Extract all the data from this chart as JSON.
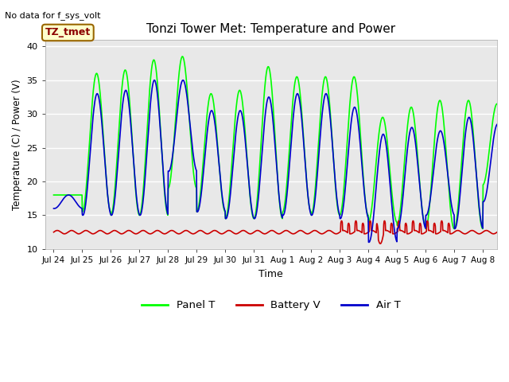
{
  "title": "Tonzi Tower Met: Temperature and Power",
  "no_data_text": "No data for f_sys_volt",
  "legend_label_text": "TZ_tmet",
  "xlabel": "Time",
  "ylabel": "Temperature (C) / Power (V)",
  "ylim": [
    10,
    41
  ],
  "yticks": [
    10,
    15,
    20,
    25,
    30,
    35,
    40
  ],
  "bg_color": "#e8e8e8",
  "fig_color": "#ffffff",
  "panel_color": "#00ff00",
  "battery_color": "#cc0000",
  "air_color": "#0000cc",
  "line_width": 1.2,
  "x_tick_labels": [
    "Jul 24",
    "Jul 25",
    "Jul 26",
    "Jul 27",
    "Jul 28",
    "Jul 29",
    "Jul 30",
    "Jul 31",
    "Aug 1",
    "Aug 2",
    "Aug 3",
    "Aug 4",
    "Aug 5",
    "Aug 6",
    "Aug 7",
    "Aug 8"
  ],
  "panel_peaks": [
    18.0,
    36.0,
    36.5,
    38.0,
    38.5,
    33.0,
    33.5,
    37.0,
    35.5,
    35.5,
    35.5,
    29.5,
    31.0,
    32.0,
    32.0,
    31.5
  ],
  "panel_troughs": [
    18.0,
    15.5,
    15.0,
    15.0,
    19.0,
    15.5,
    14.5,
    14.5,
    15.5,
    15.0,
    15.0,
    14.0,
    13.5,
    13.0,
    13.0,
    19.5
  ],
  "air_peaks": [
    18.0,
    33.0,
    33.5,
    35.0,
    35.0,
    30.5,
    30.5,
    32.5,
    33.0,
    33.0,
    31.0,
    27.0,
    28.0,
    27.5,
    29.5,
    28.5
  ],
  "air_troughs": [
    16.0,
    15.0,
    15.0,
    15.0,
    21.5,
    15.5,
    14.5,
    14.5,
    15.0,
    15.0,
    14.5,
    11.0,
    13.0,
    15.0,
    13.0,
    17.0
  ],
  "battery_base": 12.5,
  "battery_ripple_amp": 0.25,
  "n_days": 16,
  "pts_per_day": 96
}
